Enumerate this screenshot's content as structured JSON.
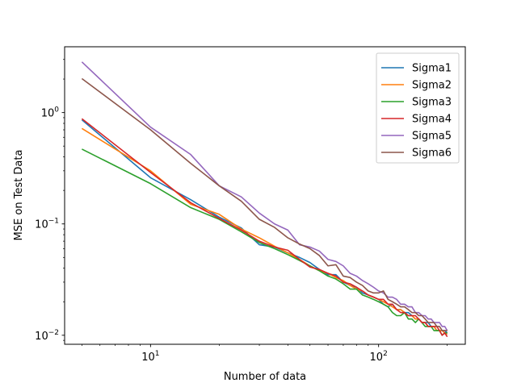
{
  "chart_data": {
    "type": "line",
    "xscale": "log",
    "yscale": "log",
    "xlabel": "Number of data",
    "ylabel": "MSE on Test Data",
    "xlim": [
      4.2,
      240
    ],
    "ylim": [
      0.0083,
      3.9
    ],
    "x_major_ticks": [
      {
        "value": 10,
        "label": "10",
        "sup": "1"
      },
      {
        "value": 100,
        "label": "10",
        "sup": "2"
      }
    ],
    "y_major_ticks": [
      {
        "value": 0.01,
        "label": "10",
        "sup": "−2"
      },
      {
        "value": 0.1,
        "label": "10",
        "sup": "−1"
      },
      {
        "value": 1,
        "label": "10",
        "sup": "0"
      }
    ],
    "grid": false,
    "legend_position": "top-right",
    "x": [
      5,
      10,
      15,
      20,
      25,
      30,
      35,
      40,
      45,
      50,
      55,
      60,
      65,
      70,
      75,
      80,
      85,
      90,
      95,
      100,
      105,
      110,
      115,
      120,
      125,
      130,
      135,
      140,
      145,
      150,
      155,
      160,
      165,
      170,
      175,
      180,
      185,
      190,
      195,
      200
    ],
    "series": [
      {
        "name": "Sigma1",
        "color": "#1f77b4",
        "values": [
          0.86,
          0.26,
          0.165,
          0.115,
          0.092,
          0.065,
          0.062,
          0.055,
          0.05,
          0.045,
          0.039,
          0.035,
          0.035,
          0.03,
          0.028,
          0.027,
          0.024,
          0.023,
          0.022,
          0.021,
          0.019,
          0.018,
          0.019,
          0.017,
          0.017,
          0.016,
          0.016,
          0.015,
          0.014,
          0.014,
          0.013,
          0.013,
          0.013,
          0.012,
          0.012,
          0.011,
          0.011,
          0.011,
          0.011,
          0.0105
        ]
      },
      {
        "name": "Sigma2",
        "color": "#ff7f0e",
        "values": [
          0.72,
          0.3,
          0.15,
          0.122,
          0.09,
          0.075,
          0.063,
          0.055,
          0.048,
          0.042,
          0.038,
          0.036,
          0.033,
          0.031,
          0.028,
          0.026,
          0.025,
          0.023,
          0.022,
          0.021,
          0.02,
          0.019,
          0.018,
          0.017,
          0.017,
          0.016,
          0.015,
          0.015,
          0.014,
          0.014,
          0.013,
          0.013,
          0.012,
          0.012,
          0.012,
          0.011,
          0.011,
          0.011,
          0.0105,
          0.0102
        ]
      },
      {
        "name": "Sigma3",
        "color": "#2ca02c",
        "values": [
          0.47,
          0.23,
          0.14,
          0.11,
          0.085,
          0.068,
          0.06,
          0.053,
          0.047,
          0.042,
          0.038,
          0.034,
          0.032,
          0.029,
          0.026,
          0.026,
          0.023,
          0.022,
          0.021,
          0.02,
          0.019,
          0.018,
          0.016,
          0.015,
          0.015,
          0.016,
          0.014,
          0.014,
          0.013,
          0.014,
          0.013,
          0.012,
          0.012,
          0.012,
          0.011,
          0.011,
          0.011,
          0.01,
          0.0105,
          0.0105
        ]
      },
      {
        "name": "Sigma4",
        "color": "#d62728",
        "values": [
          0.88,
          0.29,
          0.155,
          0.112,
          0.088,
          0.07,
          0.062,
          0.058,
          0.048,
          0.041,
          0.039,
          0.036,
          0.034,
          0.03,
          0.029,
          0.027,
          0.025,
          0.023,
          0.022,
          0.021,
          0.021,
          0.019,
          0.019,
          0.017,
          0.016,
          0.016,
          0.015,
          0.015,
          0.015,
          0.014,
          0.013,
          0.013,
          0.012,
          0.012,
          0.012,
          0.012,
          0.011,
          0.01,
          0.0105,
          0.0097
        ]
      },
      {
        "name": "Sigma5",
        "color": "#9467bd",
        "values": [
          2.85,
          0.74,
          0.42,
          0.22,
          0.175,
          0.125,
          0.1,
          0.088,
          0.065,
          0.062,
          0.057,
          0.048,
          0.046,
          0.042,
          0.036,
          0.034,
          0.031,
          0.029,
          0.027,
          0.025,
          0.024,
          0.022,
          0.022,
          0.021,
          0.019,
          0.019,
          0.018,
          0.018,
          0.016,
          0.016,
          0.015,
          0.015,
          0.014,
          0.014,
          0.013,
          0.013,
          0.013,
          0.012,
          0.012,
          0.011
        ]
      },
      {
        "name": "Sigma6",
        "color": "#8c564b",
        "values": [
          2.02,
          0.7,
          0.35,
          0.22,
          0.16,
          0.11,
          0.093,
          0.075,
          0.066,
          0.06,
          0.052,
          0.042,
          0.043,
          0.034,
          0.033,
          0.03,
          0.028,
          0.025,
          0.024,
          0.024,
          0.025,
          0.021,
          0.02,
          0.019,
          0.018,
          0.018,
          0.017,
          0.016,
          0.016,
          0.015,
          0.015,
          0.014,
          0.013,
          0.013,
          0.013,
          0.012,
          0.012,
          0.011,
          0.011,
          0.011
        ]
      }
    ]
  }
}
